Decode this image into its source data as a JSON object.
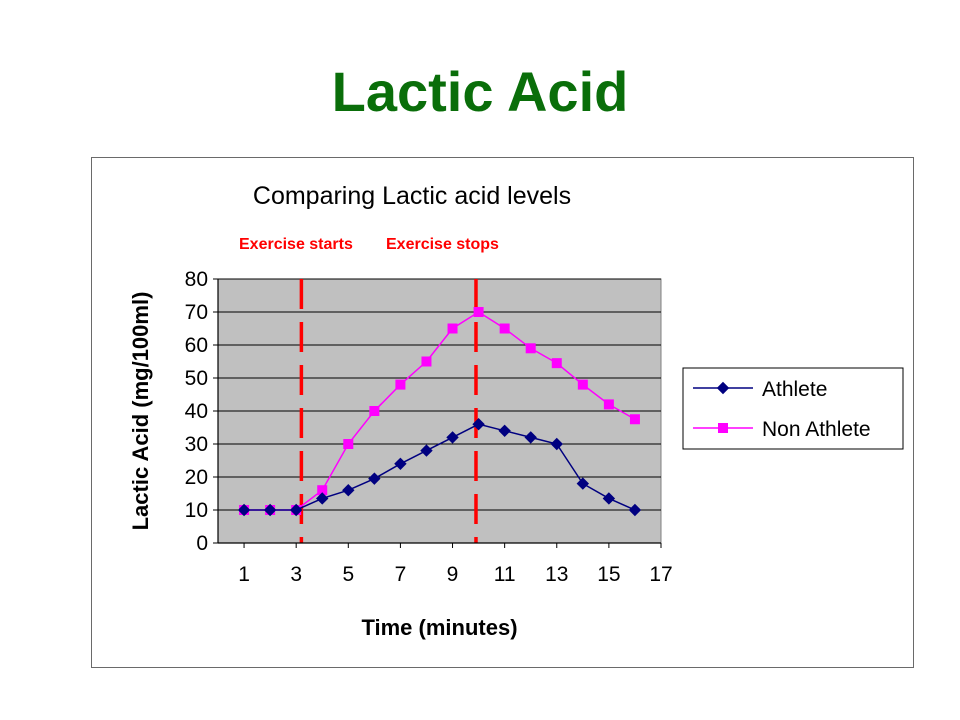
{
  "slide": {
    "title": "Lactic Acid",
    "title_color": "#0a6e0a"
  },
  "chart_data": {
    "type": "line",
    "title": "Comparing Lactic acid levels",
    "xlabel": "Time (minutes)",
    "ylabel": "Lactic Acid (mg/100ml)",
    "x": [
      1,
      2,
      3,
      4,
      5,
      6,
      7,
      8,
      9,
      10,
      11,
      12,
      13,
      14,
      15,
      16
    ],
    "xlim": [
      0,
      17
    ],
    "ylim": [
      0,
      80
    ],
    "x_ticks": [
      1,
      3,
      5,
      7,
      9,
      11,
      13,
      15,
      17
    ],
    "y_ticks": [
      0,
      10,
      20,
      30,
      40,
      50,
      60,
      70,
      80
    ],
    "grid": true,
    "plot_background": "#c0c0c0",
    "legend_position": "right",
    "series": [
      {
        "name": "Athlete",
        "color": "#000080",
        "marker": "diamond",
        "values": [
          10,
          10,
          10,
          13.5,
          16,
          19.5,
          24,
          28,
          32,
          36,
          34,
          32,
          30,
          18,
          13.5,
          10
        ]
      },
      {
        "name": "Non Athlete",
        "color": "#ff00ff",
        "marker": "square",
        "values": [
          10,
          10,
          10,
          16,
          30,
          40,
          48,
          55,
          65,
          70,
          65,
          59,
          54.5,
          48,
          42,
          37.5
        ]
      }
    ],
    "annotations": [
      {
        "label": "Exercise starts",
        "x": 3.2,
        "color": "#ff0000",
        "style": "dashed"
      },
      {
        "label": "Exercise stops",
        "x": 9.9,
        "color": "#ff0000",
        "style": "dashed"
      }
    ]
  }
}
